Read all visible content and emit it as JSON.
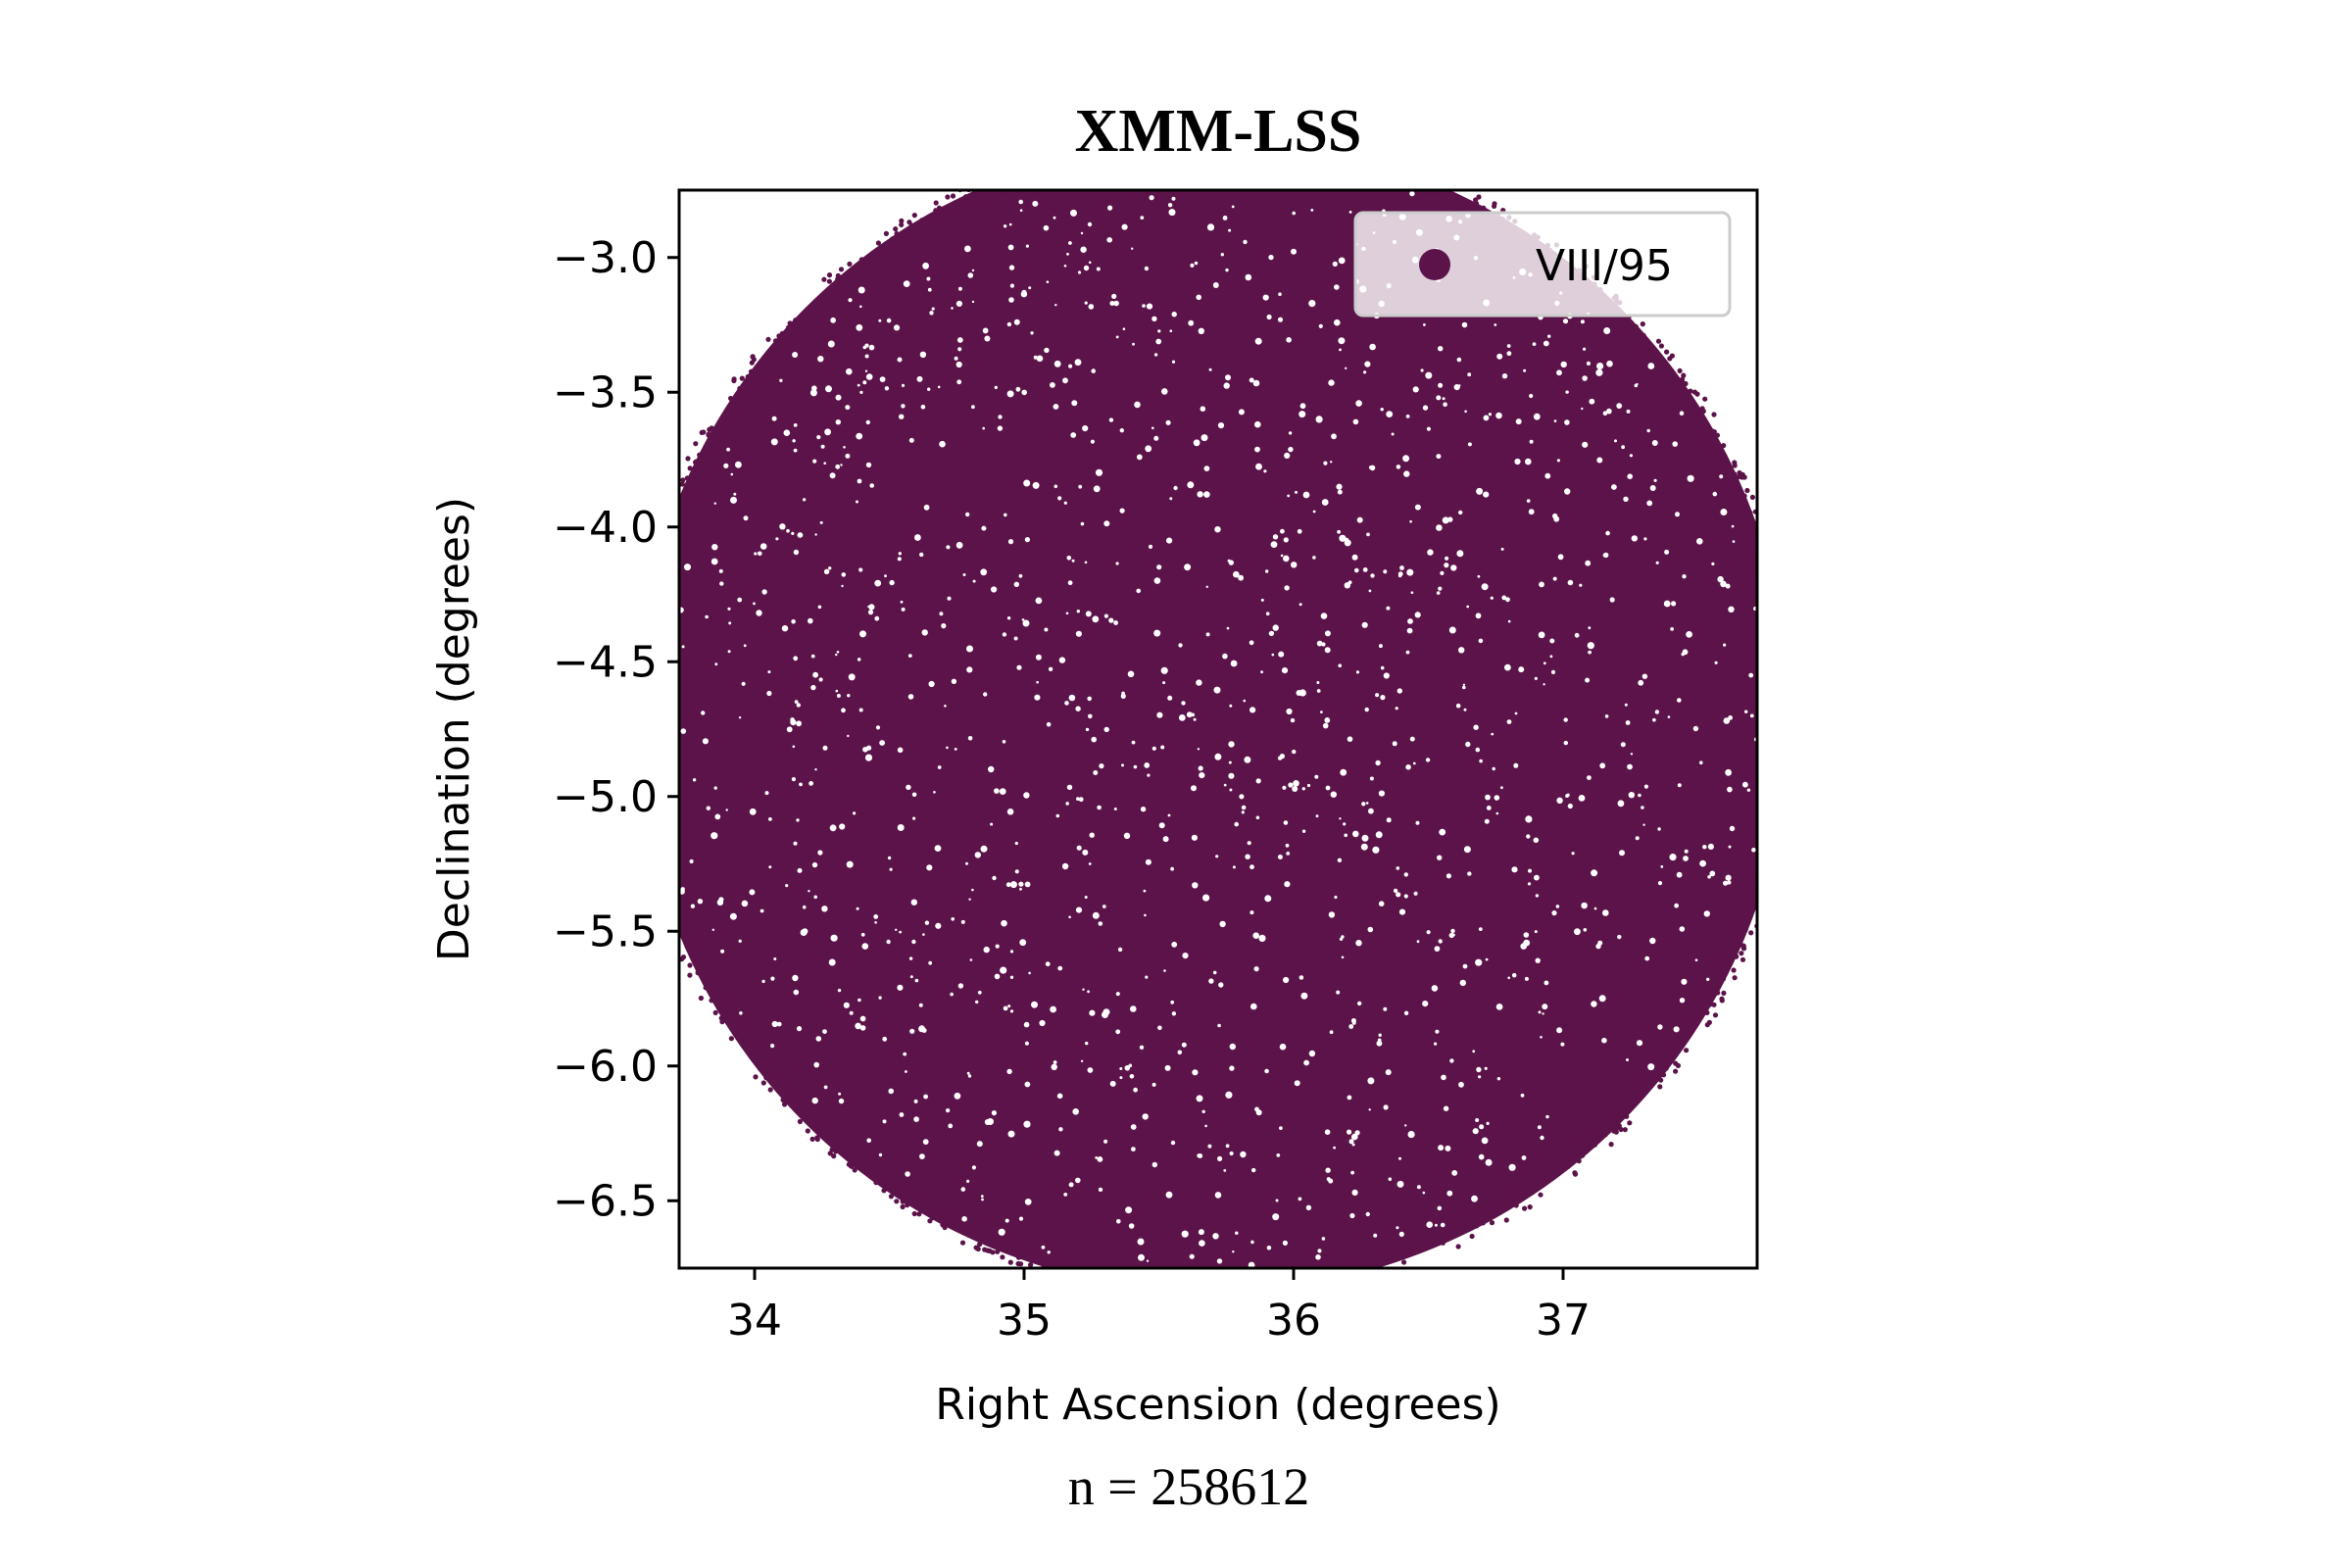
{
  "chart_data": {
    "type": "scatter",
    "title": "XMM-LSS",
    "xlabel": "Right Ascension (degrees)",
    "ylabel": "Declination (degrees)",
    "xlim": [
      33.72,
      37.72
    ],
    "ylim": [
      -6.75,
      -2.75
    ],
    "x_ticks": [
      34,
      35,
      36,
      37
    ],
    "x_tick_labels": [
      "34",
      "35",
      "36",
      "37"
    ],
    "y_ticks": [
      -3.0,
      -3.5,
      -4.0,
      -4.5,
      -5.0,
      -5.5,
      -6.0,
      -6.5
    ],
    "y_tick_labels": [
      "−3.0",
      "−3.5",
      "−4.0",
      "−4.5",
      "−5.0",
      "−5.5",
      "−6.0",
      "−6.5"
    ],
    "grid": false,
    "legend_position": "top-right",
    "series": [
      {
        "name": "VIII/95",
        "color": "#5c1349",
        "footprint_center": [
          35.7,
          -4.7
        ],
        "footprint_radius_deg": 2.15
      }
    ],
    "annotation": "n = 258612"
  }
}
